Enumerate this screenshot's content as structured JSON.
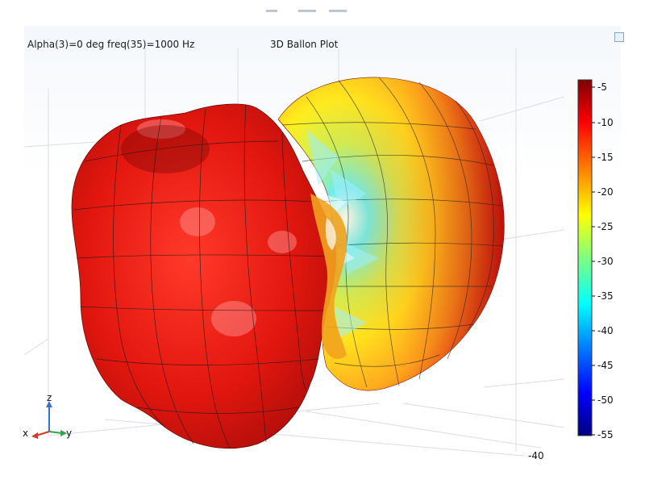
{
  "plot": {
    "left_title": "Alpha(3)=0 deg freq(35)=1000 Hz",
    "center_title": "3D Ballon Plot"
  },
  "axes": {
    "z_label": "z",
    "x_label": "x",
    "y_label": "y",
    "tick_label": "-40"
  },
  "colorbar": {
    "ticks": [
      "-5",
      "-10",
      "-15",
      "-20",
      "-25",
      "-30",
      "-35",
      "-40",
      "-45",
      "-50",
      "-55"
    ],
    "colors": [
      "#00007f",
      "#0000ff",
      "#007fff",
      "#00ffff",
      "#7fff7f",
      "#ffff00",
      "#ff7f00",
      "#ff0000",
      "#7f0000"
    ]
  }
}
